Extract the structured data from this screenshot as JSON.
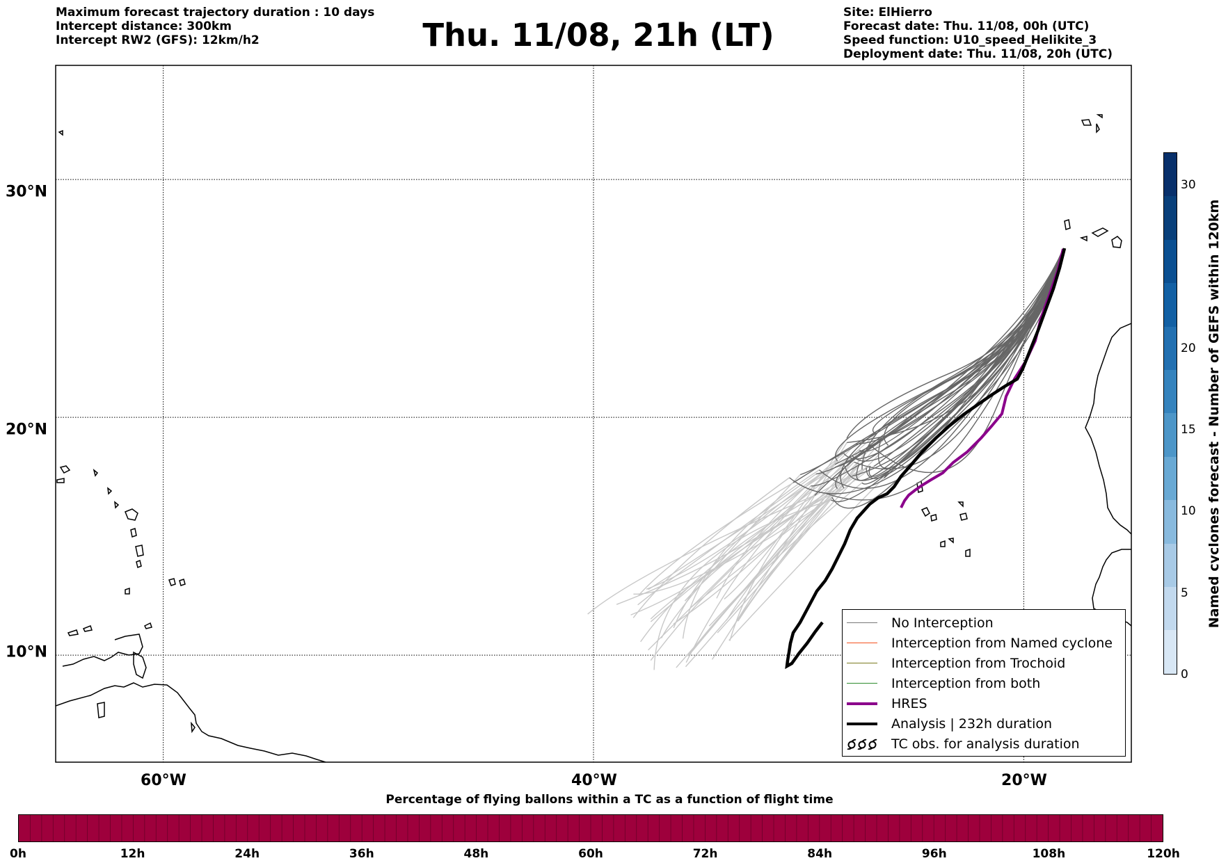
{
  "header": {
    "left_lines": [
      "Maximum forecast trajectory duration : 10 days",
      "Intercept distance: 300km",
      "Intercept RW2 (GFS):  12km/h2"
    ],
    "title": "Thu. 11/08, 21h (LT)",
    "right_lines": [
      "Site: ElHierro",
      "Forecast date: Thu. 11/08, 00h (UTC)",
      "Speed function: U10_speed_Helikite_3",
      "Deployment date: Thu. 11/08, 20h (UTC)"
    ]
  },
  "map": {
    "lon_range": [
      -65,
      -15
    ],
    "lat_range": [
      5.5,
      34.8
    ],
    "meridians": [
      {
        "lon": -60,
        "label": "60°W"
      },
      {
        "lon": -40,
        "label": "40°W"
      },
      {
        "lon": -20,
        "label": "20°W"
      }
    ],
    "parallels": [
      {
        "lat": 30,
        "label": "30°N"
      },
      {
        "lat": 20,
        "label": "20°N"
      },
      {
        "lat": 10,
        "label": "10°N"
      }
    ],
    "colors": {
      "no_interception": "#666666",
      "ensemble_light": "#c8c8c8",
      "hres": "#8b008b",
      "analysis": "#000000"
    }
  },
  "legend": [
    {
      "label": "No Interception",
      "color": "#777777",
      "width": 1.5,
      "kind": "line"
    },
    {
      "label": "Interception from Named cyclone",
      "color": "#f4511e",
      "width": 1.5,
      "kind": "line"
    },
    {
      "label": "Interception from Trochoid",
      "color": "#7a7a1e",
      "width": 1.5,
      "kind": "line"
    },
    {
      "label": "Interception from both",
      "color": "#2e8b2e",
      "width": 1.5,
      "kind": "line"
    },
    {
      "label": "HRES",
      "color": "#8b008b",
      "width": 4,
      "kind": "line"
    },
    {
      "label": "Analysis | 232h duration",
      "color": "#000000",
      "width": 4,
      "kind": "line"
    },
    {
      "label": "TC obs. for analysis duration",
      "color": "#000000",
      "kind": "symbol"
    }
  ],
  "colorbar": {
    "label": "Named cyclones forecast - Number of GEFS within 120km",
    "min": 0,
    "max": 32,
    "ticks": [
      0,
      5,
      10,
      15,
      20,
      30
    ],
    "colors": [
      "#d8e7f5",
      "#c2d9ee",
      "#a8cae6",
      "#89bade",
      "#69a9d4",
      "#4d96c8",
      "#3583bd",
      "#2270b1",
      "#1260a4",
      "#0a4f91",
      "#083f7a",
      "#08306b"
    ]
  },
  "ptc_bar": {
    "title": "Percentage of flying ballons within a TC as a function of flight time",
    "ticks": [
      "0h",
      "12h",
      "24h",
      "36h",
      "48h",
      "60h",
      "72h",
      "84h",
      "96h",
      "108h",
      "120h"
    ],
    "color": "#9e003c"
  }
}
